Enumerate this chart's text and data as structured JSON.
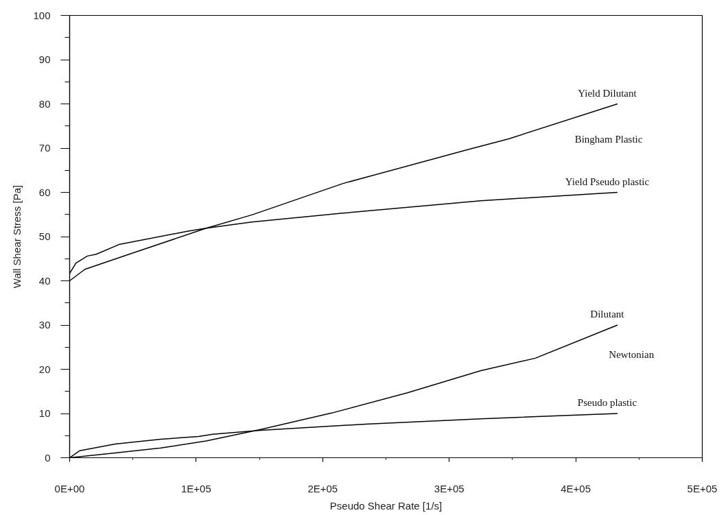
{
  "chart_data": {
    "type": "line",
    "xlabel": "Pseudo Shear Rate [1/s]",
    "ylabel": "Wall Shear Stress [Pa]",
    "xlim": [
      0,
      500000
    ],
    "ylim": [
      0,
      100
    ],
    "xticks": [
      {
        "value": 0,
        "label": "0E+00"
      },
      {
        "value": 50000,
        "label": null
      },
      {
        "value": 100000,
        "label": "1E+05"
      },
      {
        "value": 150000,
        "label": null
      },
      {
        "value": 200000,
        "label": "2E+05"
      },
      {
        "value": 250000,
        "label": null
      },
      {
        "value": 300000,
        "label": "3E+05"
      },
      {
        "value": 350000,
        "label": null
      },
      {
        "value": 400000,
        "label": "4E+05"
      },
      {
        "value": 450000,
        "label": null
      },
      {
        "value": 500000,
        "label": "5E+05"
      }
    ],
    "yticks": [
      0,
      {
        "value": 5,
        "label": null
      },
      10,
      {
        "value": 15,
        "label": null
      },
      20,
      {
        "value": 25,
        "label": null
      },
      30,
      {
        "value": 35,
        "label": null
      },
      40,
      {
        "value": 45,
        "label": null
      },
      50,
      {
        "value": 55,
        "label": null
      },
      60,
      {
        "value": 65,
        "label": null
      },
      70,
      {
        "value": 75,
        "label": null
      },
      80,
      {
        "value": 85,
        "label": null
      },
      90,
      {
        "value": 95,
        "label": null
      },
      100
    ],
    "grid": false,
    "legend": false,
    "line_style": "solid",
    "series": [
      {
        "name": "Yield Dilutant",
        "color": "#000000",
        "x": [
          0,
          12000,
          47000,
          108000,
          144000,
          216000,
          314000,
          347000,
          433000
        ],
        "values": [
          40,
          42.6,
          46,
          51.9,
          54.9,
          62,
          69.6,
          72.1,
          80
        ]
      },
      {
        "name": "Yield Pseudo plastic",
        "color": "#000000",
        "x": [
          0,
          5000,
          14000,
          21000,
          39000,
          93000,
          108000,
          144000,
          216000,
          325000,
          433000
        ],
        "values": [
          41.7,
          44,
          45.6,
          46,
          48.2,
          51.2,
          51.9,
          53.3,
          55.3,
          58.1,
          60
        ]
      },
      {
        "name": "Dilutant",
        "color": "#000000",
        "x": [
          0,
          36000,
          72000,
          108000,
          151000,
          207000,
          267000,
          325000,
          368000,
          433000
        ],
        "values": [
          0,
          1.1,
          2.2,
          3.8,
          6.4,
          10.1,
          14.7,
          19.7,
          22.5,
          30
        ]
      },
      {
        "name": "Pseudo plastic",
        "color": "#000000",
        "x": [
          0,
          8000,
          36000,
          72000,
          102000,
          113000,
          151000,
          234000,
          325000,
          433000
        ],
        "values": [
          0,
          1.6,
          3.1,
          4.2,
          4.8,
          5.3,
          6.2,
          7.6,
          8.8,
          10
        ]
      }
    ],
    "annotations": [
      "Bingham Plastic",
      "Newtonian"
    ]
  }
}
